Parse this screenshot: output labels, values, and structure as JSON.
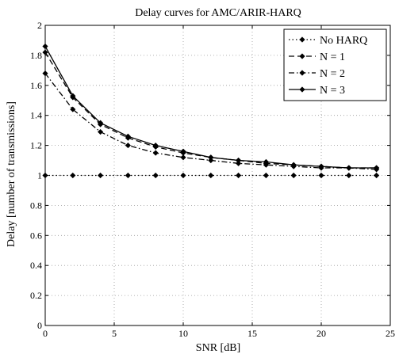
{
  "chart_data": {
    "type": "line",
    "title": "Delay curves for AMC/ARIR-HARQ",
    "xlabel": "SNR [dB]",
    "ylabel": "Delay [number of transmissions]",
    "xlim": [
      0,
      25
    ],
    "ylim": [
      0,
      2
    ],
    "xticks": [
      0,
      5,
      10,
      15,
      20,
      25
    ],
    "yticks": [
      0,
      0.2,
      0.4,
      0.6,
      0.8,
      1,
      1.2,
      1.4,
      1.6,
      1.8,
      2
    ],
    "xtick_labels": [
      "0",
      "5",
      "10",
      "15",
      "20",
      "25"
    ],
    "ytick_labels": [
      "0",
      "0.2",
      "0.4",
      "0.6",
      "0.8",
      "1",
      "1.2",
      "1.4",
      "1.6",
      "1.8",
      "2"
    ],
    "grid": true,
    "legend_position": "top-right",
    "x": [
      0,
      2,
      4,
      6,
      8,
      10,
      12,
      14,
      16,
      18,
      20,
      22,
      24
    ],
    "series": [
      {
        "name": "No HARQ",
        "line_style": "dotted",
        "marker": "diamond",
        "color": "#000000",
        "values": [
          1,
          1,
          1,
          1,
          1,
          1,
          1,
          1,
          1,
          1,
          1,
          1,
          1
        ]
      },
      {
        "name": "N = 1",
        "line_style": "dashed",
        "marker": "diamond",
        "color": "#000000",
        "values": [
          1.82,
          1.52,
          1.34,
          1.25,
          1.19,
          1.15,
          1.12,
          1.1,
          1.08,
          1.07,
          1.06,
          1.05,
          1.05
        ]
      },
      {
        "name": "N = 2",
        "line_style": "dashdot",
        "marker": "diamond",
        "color": "#000000",
        "values": [
          1.68,
          1.44,
          1.29,
          1.2,
          1.15,
          1.12,
          1.1,
          1.08,
          1.07,
          1.06,
          1.05,
          1.05,
          1.04
        ]
      },
      {
        "name": "N = 3",
        "line_style": "solid",
        "marker": "diamond",
        "color": "#000000",
        "values": [
          1.86,
          1.53,
          1.35,
          1.26,
          1.2,
          1.16,
          1.12,
          1.1,
          1.09,
          1.07,
          1.06,
          1.05,
          1.05
        ]
      }
    ]
  }
}
